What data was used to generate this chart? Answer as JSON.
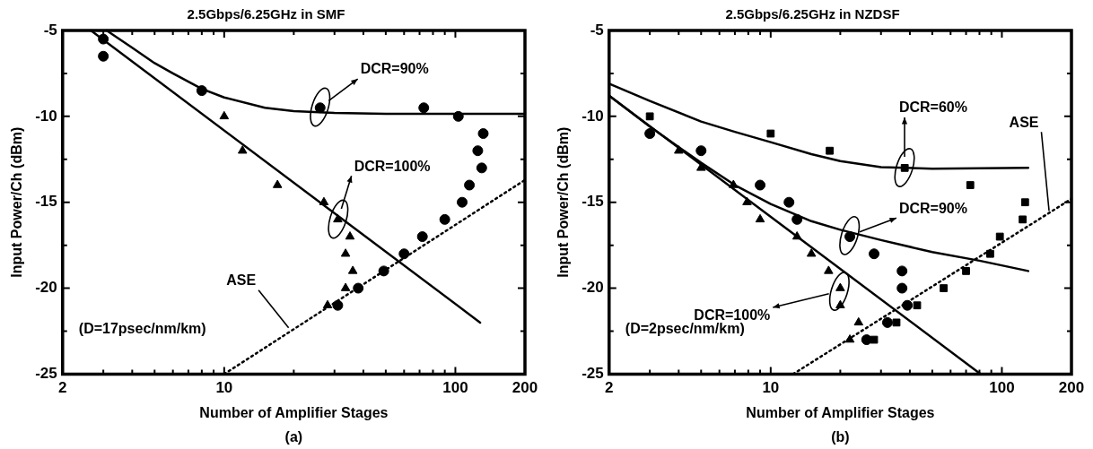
{
  "chart_data": [
    {
      "type": "scatter",
      "title": "2.5Gbps/6.25GHz in SMF",
      "xlabel": "Number of Amplifier Stages",
      "ylabel": "Input Power/Ch (dBm)",
      "log": "x",
      "legend": false,
      "xlim": [
        2,
        200
      ],
      "xticks": [
        2,
        {
          "value": 3,
          "label": null
        },
        {
          "value": 4,
          "label": null
        },
        {
          "value": 5,
          "label": null
        },
        {
          "value": 6,
          "label": null
        },
        {
          "value": 7,
          "label": null
        },
        {
          "value": 8,
          "label": null
        },
        {
          "value": 9,
          "label": null
        },
        10,
        {
          "value": 20,
          "label": null
        },
        {
          "value": 30,
          "label": null
        },
        {
          "value": 40,
          "label": null
        },
        {
          "value": 50,
          "label": null
        },
        {
          "value": 60,
          "label": null
        },
        {
          "value": 70,
          "label": null
        },
        {
          "value": 80,
          "label": null
        },
        {
          "value": 90,
          "label": null
        },
        100,
        200
      ],
      "ylim": [
        -25,
        -5
      ],
      "yticks": [
        -25,
        {
          "value": -22.5,
          "label": null
        },
        -20,
        {
          "value": -17.5,
          "label": null
        },
        -15,
        {
          "value": -12.5,
          "label": null
        },
        -10,
        {
          "value": -7.5,
          "label": null
        },
        -5
      ],
      "series": [
        {
          "type": "line",
          "marker": "none",
          "line_style": "solid",
          "color": "#000000",
          "x": [
            3.1,
            4,
            5,
            6,
            8,
            10,
            15,
            20,
            30,
            50,
            200
          ],
          "values": [
            -5,
            -6,
            -6.9,
            -7.5,
            -8.4,
            -8.9,
            -9.5,
            -9.7,
            -9.8,
            -9.85,
            -9.85
          ]
        },
        {
          "type": "line",
          "marker": "none",
          "line_style": "solid",
          "color": "#000000",
          "x": [
            2.65,
            128
          ],
          "values": [
            -5,
            -22
          ]
        },
        {
          "type": "line",
          "marker": "none",
          "line_style": "dotted",
          "color": "#000000",
          "x": [
            10,
            200
          ],
          "values": [
            -25,
            -13.7
          ]
        },
        {
          "type": "scatter",
          "marker": "circle",
          "color": "#000000",
          "x": [
            3,
            3,
            8,
            26,
            73,
            103,
            132,
            125,
            130,
            115,
            107,
            90,
            72,
            60,
            49,
            38,
            31
          ],
          "values": [
            -5.5,
            -6.5,
            -8.5,
            -9.5,
            -9.5,
            -10,
            -11,
            -12,
            -13,
            -14,
            -15,
            -16,
            -17,
            -18,
            -19,
            -20,
            -21
          ]
        },
        {
          "type": "scatter",
          "marker": "triangle",
          "color": "#000000",
          "x": [
            10,
            12,
            17,
            27,
            31,
            35,
            33.5,
            36,
            33.5,
            28
          ],
          "values": [
            -10,
            -12,
            -14,
            -15,
            -16,
            -17,
            -18,
            -19,
            -20,
            -21
          ]
        }
      ],
      "annotations": [
        "DCR=90%",
        "DCR=100%",
        {
          "text": "ASE",
          "x": 19,
          "y": -22.3
        },
        "(D=17psec/nm/km)",
        "(a)"
      ]
    },
    {
      "type": "scatter",
      "title": "2.5Gbps/6.25GHz in NZDSF",
      "xlabel": "Number of Amplifier Stages",
      "ylabel": "Input Power/Ch (dBm)",
      "log": "x",
      "legend": false,
      "xlim": [
        2,
        200
      ],
      "xticks": [
        2,
        {
          "value": 3,
          "label": null
        },
        {
          "value": 4,
          "label": null
        },
        {
          "value": 5,
          "label": null
        },
        {
          "value": 6,
          "label": null
        },
        {
          "value": 7,
          "label": null
        },
        {
          "value": 8,
          "label": null
        },
        {
          "value": 9,
          "label": null
        },
        10,
        {
          "value": 20,
          "label": null
        },
        {
          "value": 30,
          "label": null
        },
        {
          "value": 40,
          "label": null
        },
        {
          "value": 50,
          "label": null
        },
        {
          "value": 60,
          "label": null
        },
        {
          "value": 70,
          "label": null
        },
        {
          "value": 80,
          "label": null
        },
        {
          "value": 90,
          "label": null
        },
        100,
        200
      ],
      "ylim": [
        -25,
        -5
      ],
      "yticks": [
        -25,
        {
          "value": -22.5,
          "label": null
        },
        -20,
        {
          "value": -17.5,
          "label": null
        },
        -15,
        {
          "value": -12.5,
          "label": null
        },
        -10,
        {
          "value": -7.5,
          "label": null
        },
        -5
      ],
      "series": [
        {
          "type": "line",
          "marker": "none",
          "line_style": "solid",
          "color": "#000000",
          "x": [
            2,
            3,
            5,
            7,
            10,
            15,
            20,
            30,
            50,
            130
          ],
          "values": [
            -8.1,
            -9.1,
            -10.3,
            -10.9,
            -11.5,
            -12.2,
            -12.6,
            -12.95,
            -13.05,
            -13
          ]
        },
        {
          "type": "line",
          "marker": "none",
          "line_style": "solid",
          "color": "#000000",
          "x": [
            2,
            3,
            5,
            7,
            10,
            15,
            20,
            30,
            50,
            80,
            130
          ],
          "values": [
            -8.8,
            -10.6,
            -12.7,
            -14,
            -15.1,
            -16.1,
            -16.6,
            -17.2,
            -17.9,
            -18.4,
            -19
          ]
        },
        {
          "type": "line",
          "marker": "none",
          "line_style": "solid",
          "color": "#000000",
          "x": [
            2,
            81
          ],
          "values": [
            -8.8,
            -25
          ]
        },
        {
          "type": "line",
          "marker": "none",
          "line_style": "dotted",
          "color": "#000000",
          "x": [
            12.5,
            200
          ],
          "values": [
            -25,
            -14.8
          ]
        },
        {
          "type": "scatter",
          "marker": "square",
          "color": "#000000",
          "x": [
            3,
            5,
            10,
            18,
            38,
            73,
            126,
            123,
            98,
            89,
            70,
            56,
            43,
            35,
            28
          ],
          "values": [
            -10,
            null,
            -11,
            -12,
            -13,
            -14,
            -15,
            -16,
            -17,
            -18,
            -19,
            -20,
            -21,
            -22,
            -23
          ]
        },
        {
          "type": "scatter",
          "marker": "triangle",
          "color": "#000000",
          "x": [
            3,
            4,
            5,
            6.9,
            7.9,
            9,
            13,
            15,
            17.8,
            20,
            20,
            24,
            22
          ],
          "values": [
            -11,
            -12,
            -13,
            -14,
            -15,
            -16,
            -17,
            -18,
            -19,
            -20,
            -21,
            -22,
            -23
          ]
        },
        {
          "type": "scatter",
          "marker": "circle",
          "color": "#000000",
          "x": [
            3,
            5,
            9,
            12,
            13,
            22,
            28,
            37,
            37,
            39,
            32,
            26
          ],
          "values": [
            -11,
            -12,
            -14,
            -15,
            -16,
            -17,
            -18,
            -19,
            -20,
            -21,
            -22,
            -23
          ]
        }
      ],
      "annotations": [
        "DCR=60%",
        "DCR=90%",
        "DCR=100%",
        {
          "text": "ASE",
          "x": 160,
          "y": -15.5
        },
        "(D=2psec/nm/km)",
        "(b)"
      ]
    }
  ]
}
